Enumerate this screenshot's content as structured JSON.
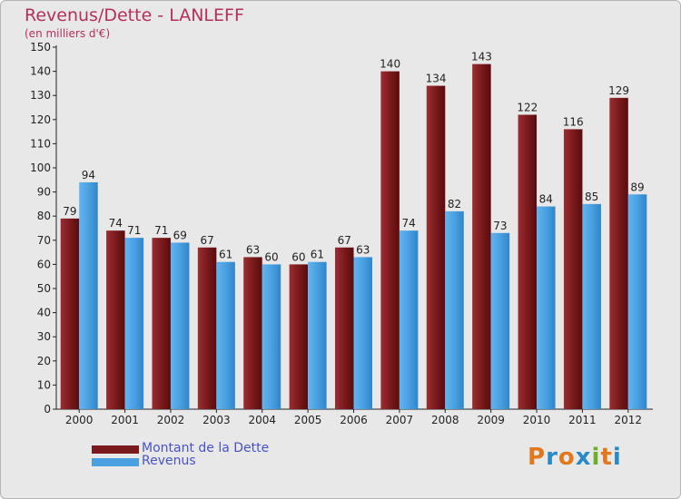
{
  "title": "Revenus/Dette - LANLEFF",
  "subtitle": "(en milliers d'€)",
  "legend": [
    {
      "label": "Montant de la Dette",
      "color": "#7a1a1c"
    },
    {
      "label": "Revenus",
      "color": "#4aa0e0"
    }
  ],
  "logo": {
    "letters": [
      "P",
      "r",
      "o",
      "x",
      "i",
      "t",
      "i"
    ],
    "colors": [
      "#e2781e",
      "#2a8ac8",
      "#e2781e",
      "#2a8ac8",
      "#6ab02a",
      "#e2781e",
      "#2a8ac8"
    ]
  },
  "colors": {
    "dette": "#7a1a1c",
    "revenus": "#4aa0e0",
    "title": "#b4305a",
    "background": "#e8e8e8"
  },
  "chart_data": {
    "type": "bar",
    "title": "Revenus/Dette - LANLEFF",
    "subtitle": "(en milliers d'€)",
    "categories": [
      "2000",
      "2001",
      "2002",
      "2003",
      "2004",
      "2005",
      "2006",
      "2007",
      "2008",
      "2009",
      "2010",
      "2011",
      "2012"
    ],
    "series": [
      {
        "name": "Montant de la Dette",
        "values": [
          79,
          74,
          71,
          67,
          63,
          60,
          67,
          140,
          134,
          143,
          122,
          116,
          129
        ]
      },
      {
        "name": "Revenus",
        "values": [
          94,
          71,
          69,
          61,
          60,
          61,
          63,
          74,
          82,
          73,
          84,
          85,
          89
        ]
      }
    ],
    "ylim": [
      0,
      150
    ],
    "yticks": [
      0,
      10,
      20,
      30,
      40,
      50,
      60,
      70,
      80,
      90,
      100,
      110,
      120,
      130,
      140,
      150
    ],
    "grid": false,
    "legend_position": "bottom-left"
  }
}
